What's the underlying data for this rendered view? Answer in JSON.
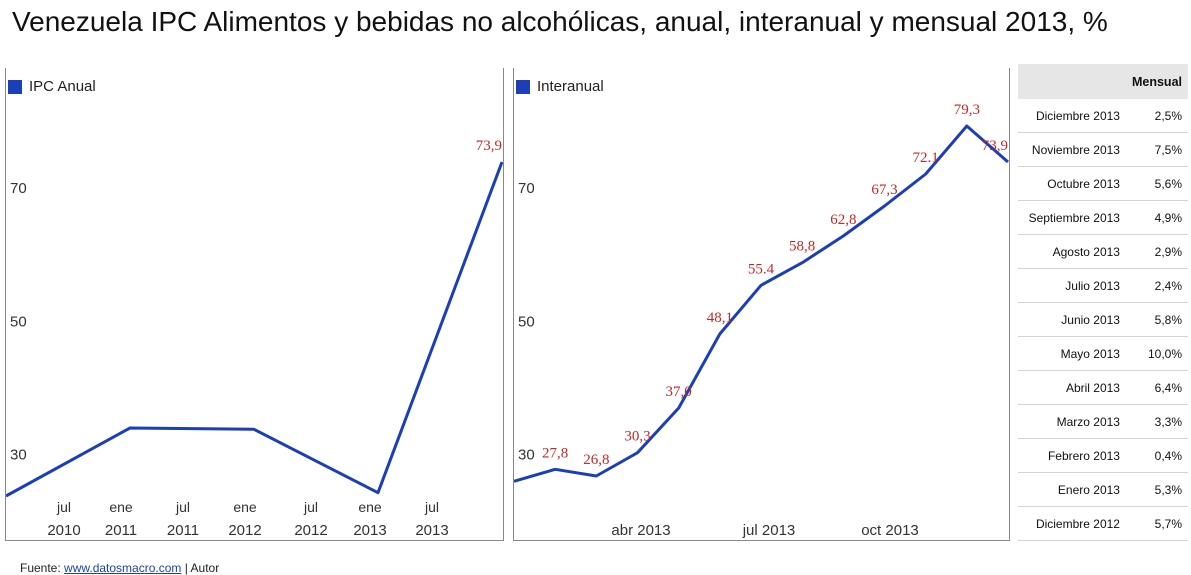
{
  "title": "Venezuela IPC Alimentos y bebidas no alcohólicas, anual, interanual y mensual 2013, %",
  "colors": {
    "line": "#1a3fb8",
    "label": "#c62828"
  },
  "chart_data": [
    {
      "type": "line",
      "legend": "IPC Anual",
      "yticks": [
        30,
        50,
        70
      ],
      "ylim": [
        22,
        79
      ],
      "x_ticks": [
        {
          "top": "jul",
          "bottom": "2010"
        },
        {
          "top": "ene",
          "bottom": "2011"
        },
        {
          "top": "jul",
          "bottom": "2011"
        },
        {
          "top": "ene",
          "bottom": "2012"
        },
        {
          "top": "jul",
          "bottom": "2012"
        },
        {
          "top": "ene",
          "bottom": "2013"
        },
        {
          "top": "jul",
          "bottom": "2013"
        }
      ],
      "series": [
        {
          "x": [
            "2009",
            "2010",
            "2011",
            "2012",
            "2013"
          ],
          "values": [
            23.8,
            34.0,
            33.8,
            24.3,
            73.9
          ],
          "labels": [
            "",
            "",
            "",
            "",
            "73,9"
          ]
        }
      ]
    },
    {
      "type": "line",
      "legend": "Interanual",
      "yticks": [
        30,
        50,
        70
      ],
      "ylim": [
        22,
        79
      ],
      "x_ticks": [
        {
          "top": "",
          "bottom": "abr 2013"
        },
        {
          "top": "",
          "bottom": "jul 2013"
        },
        {
          "top": "",
          "bottom": "oct 2013"
        }
      ],
      "series": [
        {
          "x": [
            "dic 2012",
            "ene 2013",
            "feb 2013",
            "mar 2013",
            "abr 2013",
            "may 2013",
            "jun 2013",
            "jul 2013",
            "ago 2013",
            "sep 2013",
            "oct 2013",
            "nov 2013",
            "dic 2013"
          ],
          "values": [
            26.0,
            27.8,
            26.8,
            30.3,
            37.0,
            48.1,
            55.4,
            58.8,
            62.8,
            67.3,
            72.1,
            79.3,
            73.9
          ],
          "labels": [
            "",
            "27,8",
            "26,8",
            "30,3",
            "37,0",
            "48,1",
            "55.4",
            "58,8",
            "62,8",
            "67,3",
            "72.1",
            "79,3",
            "73,9"
          ]
        }
      ]
    },
    {
      "type": "table",
      "header": [
        "",
        "Mensual"
      ],
      "rows": [
        {
          "mes": "Diciembre 2013",
          "valor": "2,5%"
        },
        {
          "mes": "Noviembre 2013",
          "valor": "7,5%"
        },
        {
          "mes": "Octubre 2013",
          "valor": "5,6%"
        },
        {
          "mes": "Septiembre 2013",
          "valor": "4,9%"
        },
        {
          "mes": "Agosto 2013",
          "valor": "2,9%"
        },
        {
          "mes": "Julio 2013",
          "valor": "2,4%"
        },
        {
          "mes": "Junio 2013",
          "valor": "5,8%"
        },
        {
          "mes": "Mayo 2013",
          "valor": "10,0%"
        },
        {
          "mes": "Abril 2013",
          "valor": "6,4%"
        },
        {
          "mes": "Marzo 2013",
          "valor": "3,3%"
        },
        {
          "mes": "Febrero 2013",
          "valor": "0,4%"
        },
        {
          "mes": "Enero 2013",
          "valor": "5,3%"
        },
        {
          "mes": "Diciembre 2012",
          "valor": "5,7%"
        }
      ]
    }
  ],
  "source": {
    "prefix": "Fuente: ",
    "link": "www.datosmacro.com",
    "suffix": " | Autor"
  }
}
